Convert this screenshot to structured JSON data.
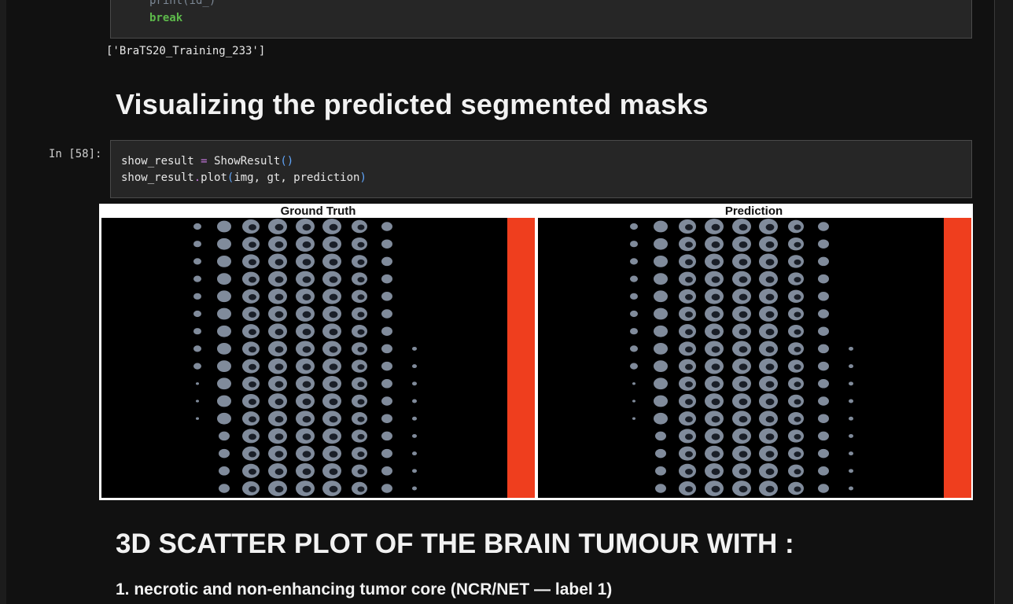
{
  "notebook": {
    "top_cell": {
      "code_lines": [
        "print(id_)",
        "break"
      ]
    },
    "top_output": "['BraTS20_Training_233']",
    "heading_visualize": "Visualizing the predicted segmented masks",
    "cell_58": {
      "prompt": "In [58]:",
      "code_lines": [
        "show_result = ShowResult()",
        "show_result.plot(img, gt, prediction)"
      ]
    },
    "figure": {
      "left_title": "Ground Truth",
      "right_title": "Prediction"
    },
    "heading_scatter": "3D SCATTER PLOT OF THE BRAIN TUMOUR WITH :",
    "list_item_1": "1. necrotic and non-enhancing tumor core (NCR/NET — label 1)"
  },
  "colors": {
    "background": "#111111",
    "code_bg": "#262626",
    "keyword_green": "#5db94b",
    "operator_purple": "#c678dd",
    "paren_blue": "#60a5fa",
    "mask_red": "#ef3e1e",
    "slice_gray": "#8e9aac"
  }
}
